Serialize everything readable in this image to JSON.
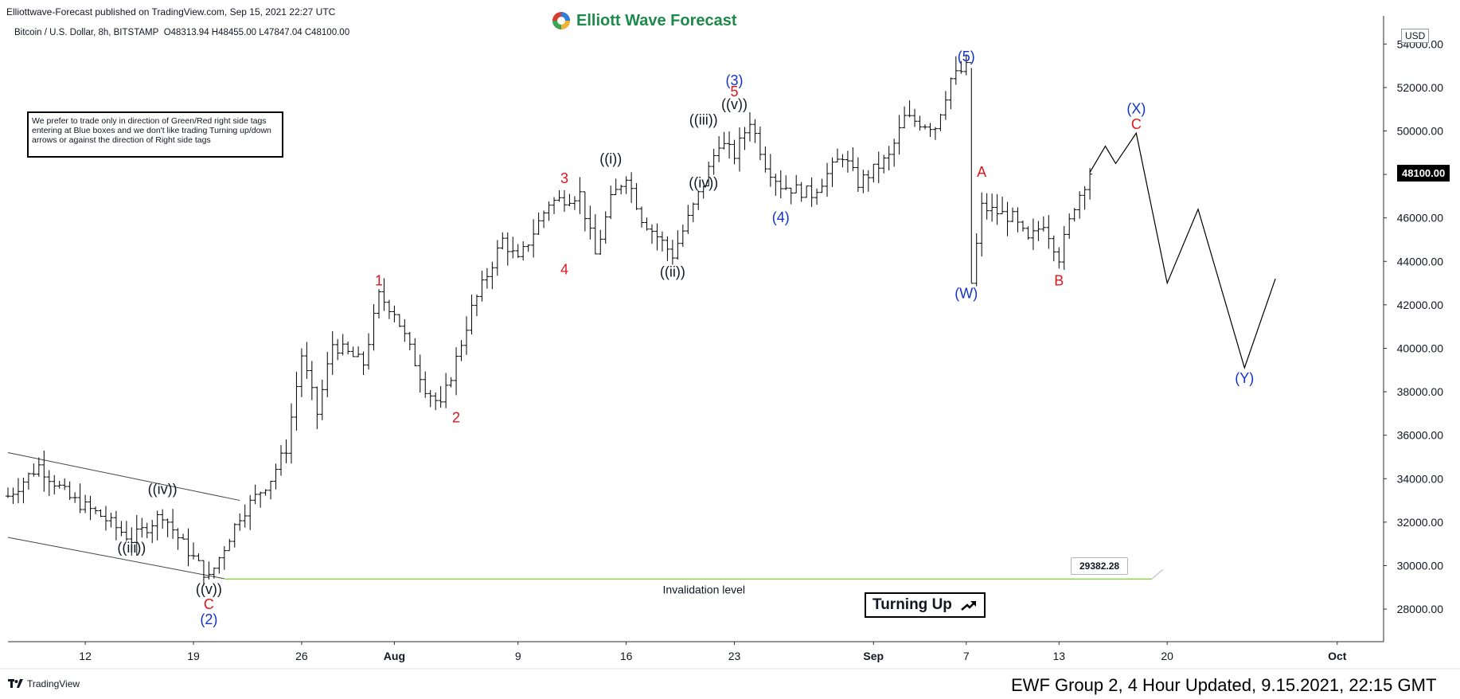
{
  "header": {
    "published_by": "Elliottwave-Forecast published on TradingView.com, Sep 15, 2021 22:27 UTC",
    "symbol_info": "Bitcoin / U.S. Dollar, 8h, BITSTAMP",
    "ohlc": "O48313.94  H48455.00  L47847.04  C48100.00",
    "brand_name": "Elliott Wave Forecast"
  },
  "note_text": "We prefer to trade only in direction of Green/Red right side tags entering at Blue boxes and we don't like trading Turning up/down arrows or against the direction of Right side tags",
  "currency": "USD",
  "last_price": "48100.00",
  "invalidation": {
    "price_label": "29382.28",
    "label": "Invalidation level"
  },
  "turning_label": "Turning Up",
  "footer": {
    "tradingview": "TradingView",
    "updated": "EWF Group 2, 4 Hour Updated, 9.15.2021, 22:15 GMT"
  },
  "colors": {
    "blue_label": "#1133cc",
    "red_label": "#e0151b",
    "black_label": "#131722",
    "invalidation_line": "#8fd14f",
    "bars": "#000000"
  },
  "chart_data": {
    "type": "ohlc",
    "title": "",
    "xlabel": "",
    "ylabel": "",
    "ylim": [
      26500,
      55000
    ],
    "xlim": [
      "2021-07-07",
      "2021-10-04"
    ],
    "y_ticks": [
      "28000.00",
      "30000.00",
      "32000.00",
      "34000.00",
      "36000.00",
      "38000.00",
      "40000.00",
      "42000.00",
      "44000.00",
      "46000.00",
      "48000.00",
      "50000.00",
      "52000.00",
      "54000.00"
    ],
    "x_ticks": [
      {
        "label": "12",
        "date": "2021-07-12"
      },
      {
        "label": "19",
        "date": "2021-07-19"
      },
      {
        "label": "26",
        "date": "2021-07-26"
      },
      {
        "label": "Aug",
        "date": "2021-08-01"
      },
      {
        "label": "9",
        "date": "2021-08-09"
      },
      {
        "label": "16",
        "date": "2021-08-16"
      },
      {
        "label": "23",
        "date": "2021-08-23"
      },
      {
        "label": "Sep",
        "date": "2021-09-01"
      },
      {
        "label": "7",
        "date": "2021-09-07"
      },
      {
        "label": "13",
        "date": "2021-09-13"
      },
      {
        "label": "20",
        "date": "2021-09-20"
      },
      {
        "label": "Oct",
        "date": "2021-10-01"
      }
    ],
    "price_path": [
      [
        "2021-07-07",
        33200
      ],
      [
        "2021-07-09",
        34600
      ],
      [
        "2021-07-11",
        33100
      ],
      [
        "2021-07-13",
        32300
      ],
      [
        "2021-07-15",
        31200
      ],
      [
        "2021-07-17",
        32400
      ],
      [
        "2021-07-18",
        31300
      ],
      [
        "2021-07-20",
        29400
      ],
      [
        "2021-07-22",
        32300
      ],
      [
        "2021-07-24",
        34000
      ],
      [
        "2021-07-25",
        35400
      ],
      [
        "2021-07-26",
        39700
      ],
      [
        "2021-07-27",
        37000
      ],
      [
        "2021-07-28",
        40200
      ],
      [
        "2021-07-30",
        39300
      ],
      [
        "2021-07-31",
        42400
      ],
      [
        "2021-08-01",
        41700
      ],
      [
        "2021-08-03",
        38200
      ],
      [
        "2021-08-04",
        37300
      ],
      [
        "2021-08-05",
        39500
      ],
      [
        "2021-08-06",
        41800
      ],
      [
        "2021-08-08",
        45000
      ],
      [
        "2021-08-09",
        44000
      ],
      [
        "2021-08-11",
        46700
      ],
      [
        "2021-08-13",
        47100
      ],
      [
        "2021-08-14",
        44300
      ],
      [
        "2021-08-15",
        46800
      ],
      [
        "2021-08-16",
        48000
      ],
      [
        "2021-08-17",
        46000
      ],
      [
        "2021-08-19",
        44300
      ],
      [
        "2021-08-21",
        47600
      ],
      [
        "2021-08-22",
        49500
      ],
      [
        "2021-08-23",
        48900
      ],
      [
        "2021-08-24",
        50500
      ],
      [
        "2021-08-25",
        48500
      ],
      [
        "2021-08-26",
        47500
      ],
      [
        "2021-08-28",
        47100
      ],
      [
        "2021-08-30",
        48900
      ],
      [
        "2021-08-31",
        47600
      ],
      [
        "2021-09-02",
        48800
      ],
      [
        "2021-09-03",
        50600
      ],
      [
        "2021-09-05",
        50200
      ],
      [
        "2021-09-06",
        52400
      ],
      [
        "2021-09-07",
        52900
      ],
      [
        "2021-09-07T08",
        43000
      ],
      [
        "2021-09-08",
        46500
      ],
      [
        "2021-09-10",
        46000
      ],
      [
        "2021-09-11",
        44900
      ],
      [
        "2021-09-12",
        45800
      ],
      [
        "2021-09-13",
        44200
      ],
      [
        "2021-09-14",
        46600
      ],
      [
        "2021-09-15",
        48100
      ]
    ],
    "projection": [
      [
        "2021-09-15",
        48100
      ],
      [
        "2021-09-16",
        49300
      ],
      [
        "2021-09-16T16",
        48500
      ],
      [
        "2021-09-18",
        49900
      ],
      [
        "2021-09-20",
        43000
      ],
      [
        "2021-09-22",
        46400
      ],
      [
        "2021-09-25",
        39100
      ],
      [
        "2021-09-27",
        43200
      ]
    ],
    "channel": [
      {
        "from": [
          "2021-07-07",
          35200
        ],
        "to": [
          "2021-07-22",
          33000
        ]
      },
      {
        "from": [
          "2021-07-07",
          31300
        ],
        "to": [
          "2021-07-21",
          29400
        ]
      }
    ],
    "invalidation_level": 29382.28,
    "invalidation_range": [
      "2021-07-21",
      "2021-09-19"
    ],
    "wave_labels": [
      {
        "text": "(2)",
        "date": "2021-07-20",
        "price": 27300,
        "color": "blue"
      },
      {
        "text": "C",
        "date": "2021-07-20",
        "price": 28000,
        "color": "red"
      },
      {
        "text": "((v))",
        "date": "2021-07-20",
        "price": 28700,
        "color": "black"
      },
      {
        "text": "((iii))",
        "date": "2021-07-15",
        "price": 30600,
        "color": "black"
      },
      {
        "text": "((iv))",
        "date": "2021-07-17",
        "price": 33300,
        "color": "black"
      },
      {
        "text": "1",
        "date": "2021-07-31",
        "price": 42900,
        "color": "red"
      },
      {
        "text": "2",
        "date": "2021-08-05",
        "price": 36600,
        "color": "red"
      },
      {
        "text": "3",
        "date": "2021-08-12",
        "price": 47600,
        "color": "red"
      },
      {
        "text": "4",
        "date": "2021-08-12",
        "price": 43400,
        "color": "red"
      },
      {
        "text": "((i))",
        "date": "2021-08-15",
        "price": 48500,
        "color": "black"
      },
      {
        "text": "((ii))",
        "date": "2021-08-19",
        "price": 43300,
        "color": "black"
      },
      {
        "text": "((iii))",
        "date": "2021-08-21",
        "price": 50300,
        "color": "black"
      },
      {
        "text": "((iv))",
        "date": "2021-08-21",
        "price": 47400,
        "color": "black"
      },
      {
        "text": "((v))",
        "date": "2021-08-23",
        "price": 51000,
        "color": "black"
      },
      {
        "text": "5",
        "date": "2021-08-23",
        "price": 51600,
        "color": "red"
      },
      {
        "text": "(3)",
        "date": "2021-08-23",
        "price": 52100,
        "color": "blue"
      },
      {
        "text": "(4)",
        "date": "2021-08-26",
        "price": 45800,
        "color": "blue"
      },
      {
        "text": "(5)",
        "date": "2021-09-07",
        "price": 53200,
        "color": "blue"
      },
      {
        "text": "A",
        "date": "2021-09-08",
        "price": 47900,
        "color": "red"
      },
      {
        "text": "(W)",
        "date": "2021-09-07",
        "price": 42300,
        "color": "blue"
      },
      {
        "text": "B",
        "date": "2021-09-13",
        "price": 42900,
        "color": "red"
      },
      {
        "text": "(X)",
        "date": "2021-09-18",
        "price": 50800,
        "color": "blue"
      },
      {
        "text": "C",
        "date": "2021-09-18",
        "price": 50100,
        "color": "red"
      },
      {
        "text": "(Y)",
        "date": "2021-09-25",
        "price": 38400,
        "color": "blue"
      }
    ]
  }
}
